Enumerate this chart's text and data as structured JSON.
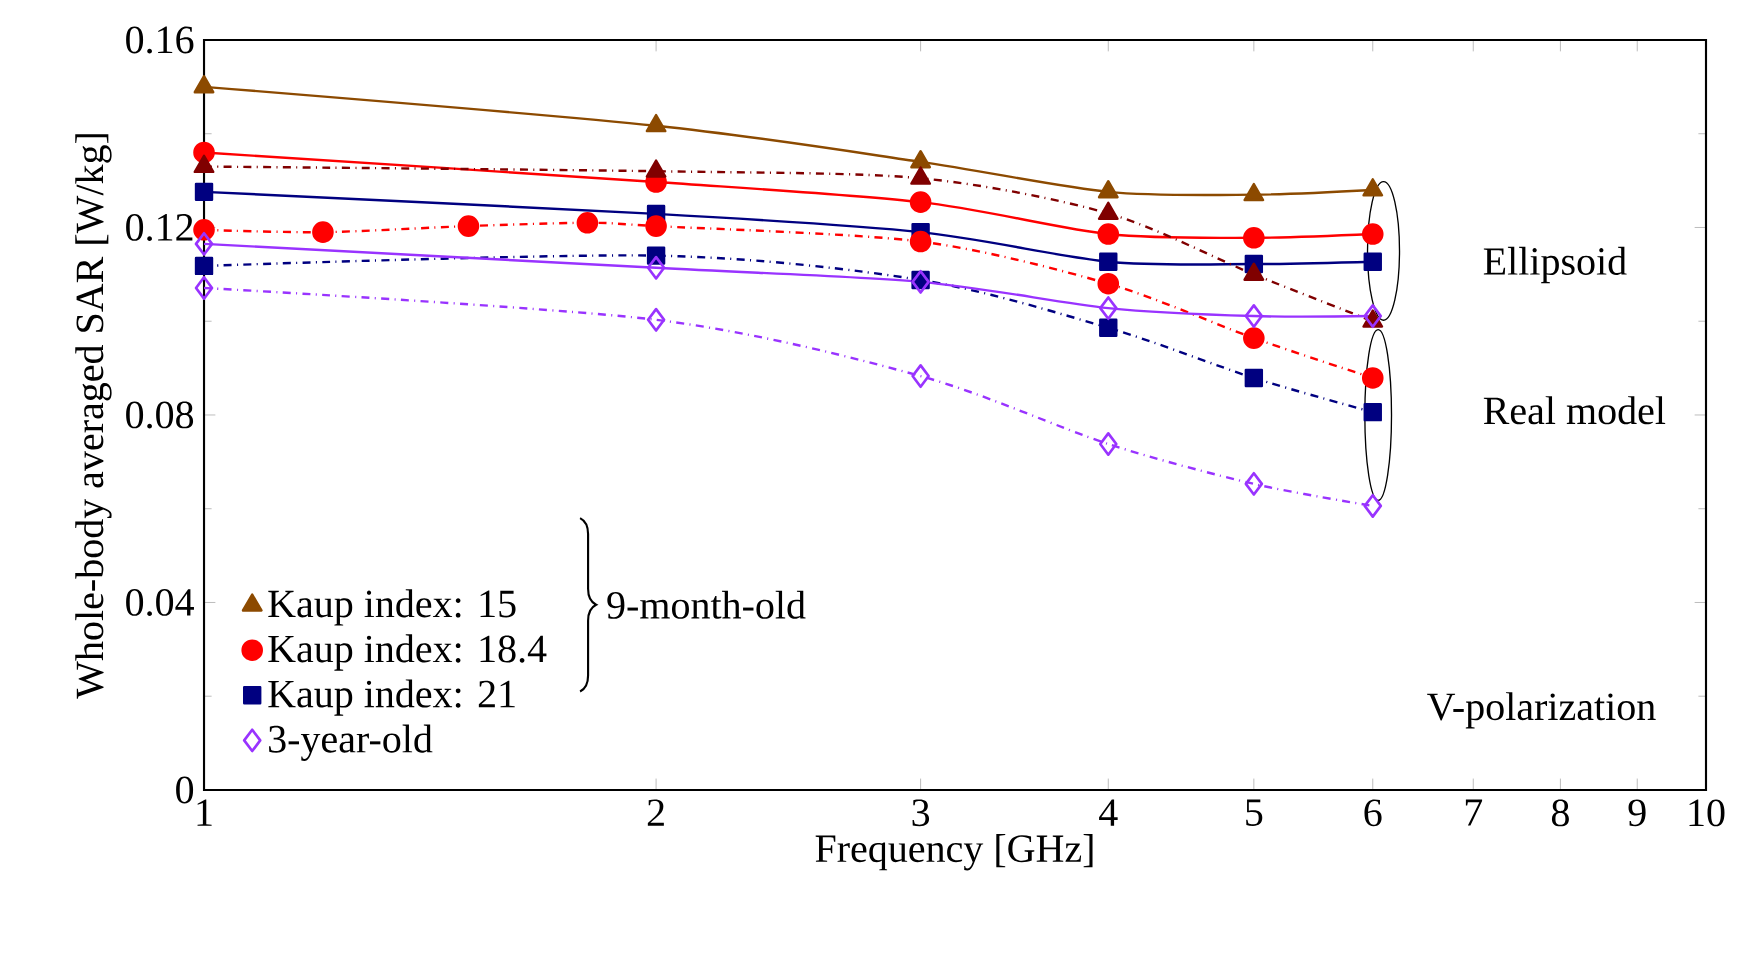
{
  "chart_data": {
    "type": "line",
    "xlabel": "Frequency [GHz]",
    "ylabel": "Whole-body averaged SAR [W/kg]",
    "x": [
      1,
      2,
      3,
      4,
      5,
      6
    ],
    "series": [
      {
        "name": "Kaup index: 15",
        "color": "#8c4a00",
        "marker": "triangle",
        "line_style": "solid",
        "values": [
          0.15,
          0.1417,
          0.134,
          0.1276,
          0.127,
          0.128
        ]
      },
      {
        "name": "Kaup index: 18.4",
        "color": "#ff0000",
        "marker": "circle",
        "line_style": "solid",
        "values": [
          0.136,
          0.1297,
          0.1254,
          0.1186,
          0.1178,
          0.1186
        ]
      },
      {
        "name": "Kaup index: 21",
        "color": "#000080",
        "marker": "square",
        "line_style": "solid",
        "values": [
          0.1276,
          0.1229,
          0.119,
          0.1127,
          0.1122,
          0.1127
        ]
      },
      {
        "name": "3-year-old",
        "color": "#9933ff",
        "marker": "diamond",
        "line_style": "solid",
        "values": [
          0.1165,
          0.1114,
          0.1084,
          0.1028,
          0.1011,
          0.1011
        ]
      },
      {
        "color": "#800000",
        "marker": "triangle",
        "line_style": "dashdot",
        "values": [
          0.133,
          0.132,
          0.1305,
          0.123,
          0.11,
          0.1
        ]
      },
      {
        "color": "#ff0000",
        "marker": "circle",
        "line_style": "dashdot",
        "x": [
          1,
          1.2,
          1.5,
          1.8,
          2,
          3,
          4,
          5,
          6
        ],
        "values": [
          0.1195,
          0.119,
          0.1203,
          0.121,
          0.1203,
          0.117,
          0.108,
          0.0964,
          0.0879
        ]
      },
      {
        "color": "#000080",
        "marker": "square",
        "line_style": "dashdot",
        "values": [
          0.1118,
          0.114,
          0.1088,
          0.0986,
          0.0879,
          0.0806
        ]
      },
      {
        "color": "#9933ff",
        "marker": "diamond",
        "line_style": "dashdot",
        "values": [
          0.1071,
          0.1003,
          0.0883,
          0.0738,
          0.0653,
          0.0606
        ]
      }
    ],
    "log": "x",
    "xlim": [
      1,
      10
    ],
    "xticks": [
      1,
      2,
      3,
      4,
      5,
      6,
      7,
      8,
      9,
      10
    ],
    "ylim": [
      0,
      0.16
    ],
    "yticks": [
      0,
      0.04,
      0.08,
      0.12,
      0.16
    ],
    "legend": "bottom left",
    "annotations": [
      "Ellipsoid",
      "Real model",
      "9-month-old",
      "V-polarization"
    ]
  }
}
